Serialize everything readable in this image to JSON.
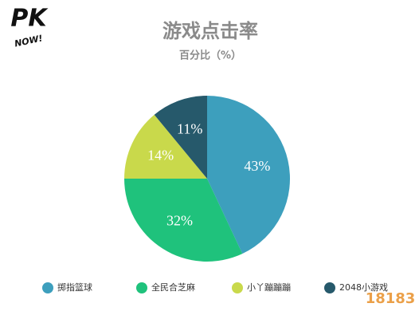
{
  "chart_data": {
    "type": "pie",
    "title": "游戏点击率",
    "subtitle": "百分比（%）",
    "categories": [
      "掷指篮球",
      "全民合芝麻",
      "小丫蹦蹦蹦",
      "2048小游戏"
    ],
    "values": [
      43,
      32,
      14,
      11
    ],
    "value_labels": [
      "43%",
      "32%",
      "14%",
      "11%"
    ],
    "colors": [
      "#3d9fbd",
      "#1fc27c",
      "#c9d94b",
      "#26596b"
    ]
  },
  "logo": {
    "mark": "PK",
    "text": "NOW!"
  },
  "watermark": "18183"
}
